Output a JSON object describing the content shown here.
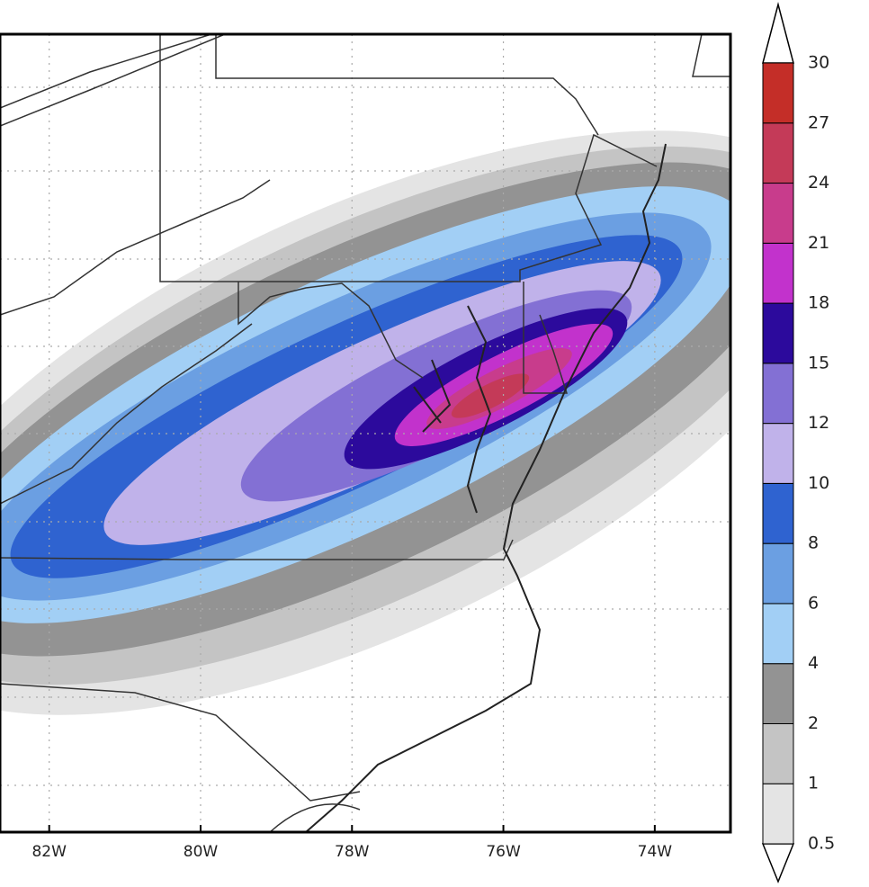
{
  "map": {
    "xlim": [
      -82.65,
      -73.0
    ],
    "xticks": [
      {
        "value": -82,
        "label": "82W"
      },
      {
        "value": -80,
        "label": "80W"
      },
      {
        "value": -78,
        "label": "78W"
      },
      {
        "value": -76,
        "label": "76W"
      },
      {
        "value": -74,
        "label": "74W"
      }
    ],
    "colorbar": {
      "levels": [
        0.5,
        1,
        2,
        4,
        6,
        8,
        10,
        12,
        15,
        18,
        21,
        24,
        27,
        30
      ],
      "colors": [
        "#e4e4e4",
        "#c4c4c4",
        "#939393",
        "#a2cff5",
        "#6b9fe2",
        "#2f63d0",
        "#c0b2ea",
        "#8370d4",
        "#2c0a9c",
        "#c232cc",
        "#c83c8c",
        "#c43a58",
        "#c42e28"
      ]
    }
  }
}
